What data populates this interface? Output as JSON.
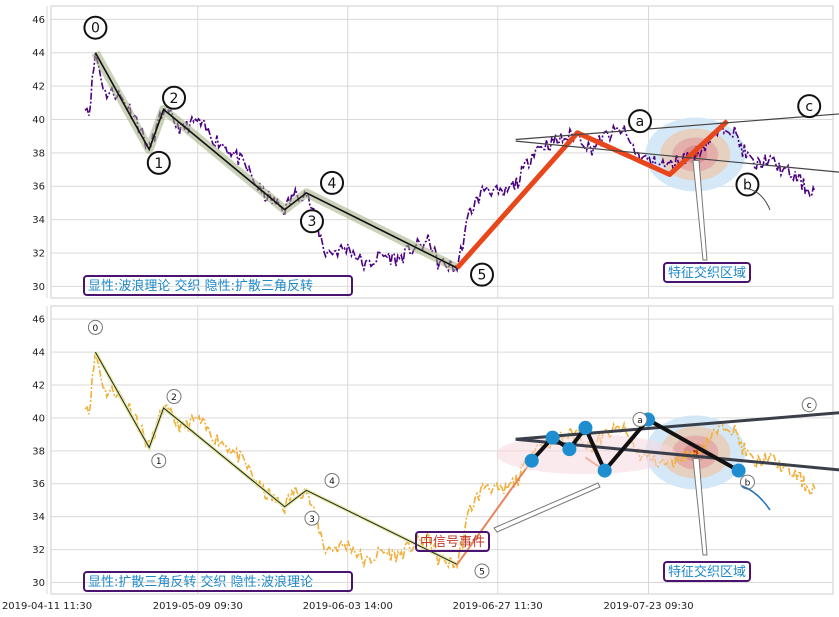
{
  "chart_data": [
    {
      "type": "line",
      "panel": "top",
      "ylim": [
        29.3,
        46.8
      ],
      "y_ticks": [
        "30",
        "32",
        "34",
        "36",
        "38",
        "40",
        "42",
        "44",
        "46"
      ],
      "grid": true,
      "wave_labels": [
        {
          "text": "0",
          "x": 1.3,
          "y": 45.5
        },
        {
          "text": "1",
          "x": 9.2,
          "y": 37.4
        },
        {
          "text": "2",
          "x": 11.1,
          "y": 41.3
        },
        {
          "text": "3",
          "x": 28.3,
          "y": 33.9
        },
        {
          "text": "4",
          "x": 30.8,
          "y": 36.2
        },
        {
          "text": "5",
          "x": 49.5,
          "y": 30.7
        },
        {
          "text": "a",
          "x": 69.2,
          "y": 39.9
        },
        {
          "text": "b",
          "x": 82.6,
          "y": 36.1
        },
        {
          "text": "c",
          "x": 90.3,
          "y": 40.8
        }
      ],
      "wave_lines": [
        {
          "name": "impulse",
          "points": [
            [
              1.3,
              44.0
            ],
            [
              8.0,
              38.2
            ],
            [
              9.8,
              40.6
            ],
            [
              24.9,
              34.6
            ],
            [
              27.6,
              35.6
            ],
            [
              46.4,
              31.1
            ]
          ]
        },
        {
          "name": "correction",
          "points": [
            [
              46.4,
              31.1
            ],
            [
              61.4,
              39.2
            ],
            [
              72.9,
              36.7
            ],
            [
              80.1,
              39.9
            ]
          ]
        }
      ],
      "triangle_lines": [
        {
          "points": [
            [
              53.7,
              38.8
            ],
            [
              103.7,
              40.7
            ]
          ]
        },
        {
          "points": [
            [
              53.7,
              38.7
            ],
            [
              103.7,
              36.4
            ]
          ]
        }
      ],
      "annotations": [
        {
          "text": "显性:波浪理论 交织 隐性:扩散三角反转",
          "color": "#1e88c9"
        },
        {
          "text": "特征交织区域",
          "color": "#1e88c9"
        }
      ]
    },
    {
      "type": "line",
      "panel": "bottom",
      "ylim": [
        29.3,
        46.8
      ],
      "y_ticks": [
        "30",
        "32",
        "34",
        "36",
        "38",
        "40",
        "42",
        "44",
        "46"
      ],
      "x_ticks": [
        "2019-04-11 11:30",
        "2019-05-09 09:30",
        "2019-06-03 14:00",
        "2019-06-27 11:30",
        "2019-07-23 09:30"
      ],
      "x_tick_positions": [
        0,
        18.8,
        37.5,
        56.2,
        75.0
      ],
      "grid": true,
      "wave_labels": [
        {
          "text": "0",
          "x": 1.3,
          "y": 45.5
        },
        {
          "text": "1",
          "x": 9.2,
          "y": 37.4
        },
        {
          "text": "2",
          "x": 11.1,
          "y": 41.3
        },
        {
          "text": "3",
          "x": 28.3,
          "y": 33.9
        },
        {
          "text": "4",
          "x": 30.8,
          "y": 36.2
        },
        {
          "text": "5",
          "x": 49.5,
          "y": 30.7
        },
        {
          "text": "a",
          "x": 69.2,
          "y": 39.9
        },
        {
          "text": "b",
          "x": 82.6,
          "y": 36.1
        },
        {
          "text": "c",
          "x": 90.3,
          "y": 40.8
        }
      ],
      "triangle_points": [
        [
          55.7,
          37.4
        ],
        [
          58.3,
          38.8
        ],
        [
          60.4,
          38.1
        ],
        [
          62.4,
          39.4
        ],
        [
          64.8,
          36.8
        ],
        [
          70.2,
          39.9
        ],
        [
          81.5,
          36.8
        ]
      ],
      "annotations": [
        {
          "text": "显性:扩散三角反转 交织 隐性:波浪理论",
          "color": "#1e88c9"
        },
        {
          "text": "中信号事件",
          "color": "#c0392b"
        },
        {
          "text": "特征交织区域",
          "color": "#1e88c9"
        }
      ]
    }
  ]
}
